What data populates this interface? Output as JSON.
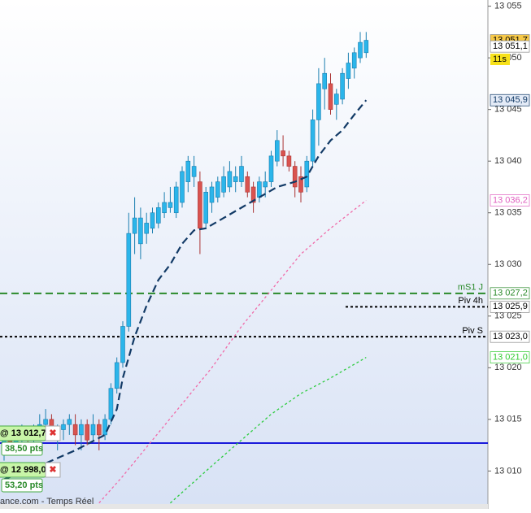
{
  "chart_data": {
    "type": "candlestick",
    "ylim": [
      13006.8,
      13055.6
    ],
    "yticks": [
      {
        "value": 13055,
        "label": "13 055"
      },
      {
        "value": 13050,
        "label": "13 050"
      },
      {
        "value": 13045,
        "label": "13 045"
      },
      {
        "value": 13040,
        "label": "13 040"
      },
      {
        "value": 13035,
        "label": "13 035"
      },
      {
        "value": 13030,
        "label": "13 030"
      },
      {
        "value": 13025,
        "label": "13 025"
      },
      {
        "value": 13020,
        "label": "13 020"
      },
      {
        "value": 13015,
        "label": "13 015"
      },
      {
        "value": 13010,
        "label": "13 010"
      }
    ],
    "up_color": "#2bb5ea",
    "down_color": "#d9534f",
    "open": [
      13012.0,
      13013.0,
      13012.5,
      13013.0,
      13013.5,
      13013.0,
      13014.0,
      13014.5,
      13015.0,
      13013.5,
      13014.0,
      13014.5,
      13014.5,
      13013.5,
      13014.5,
      13013.5,
      13014.5,
      13013.5,
      13015.0,
      13018.0,
      13020.5,
      13024.0,
      13033.0,
      13032.0,
      13033.0,
      13033.5,
      13034.0,
      13035.0,
      13035.5,
      13035.0,
      13036.0,
      13038.0,
      13038.5,
      13038.0,
      13034.0,
      13036.0,
      13036.5,
      13037.0,
      13037.5,
      13038.0,
      13038.0,
      13038.5,
      13037.5,
      13036.5,
      13037.5,
      13038.0,
      13040.0,
      13041.0,
      13040.5,
      13039.5,
      13038.5,
      13037.5,
      13040.0,
      13044.0,
      13047.0,
      13047.5,
      13045.5,
      13046.0,
      13048.0,
      13049.0,
      13050.0,
      13050.5
    ],
    "high": [
      13013.5,
      13014.0,
      13013.5,
      13014.5,
      13014.0,
      13014.5,
      13015.5,
      13016.0,
      13015.5,
      13014.5,
      13015.0,
      13015.5,
      13015.5,
      13015.0,
      13015.0,
      13015.5,
      13015.0,
      13015.5,
      13018.5,
      13021.0,
      13024.5,
      13035.0,
      13036.5,
      13035.5,
      13035.0,
      13035.5,
      13036.0,
      13037.0,
      13037.5,
      13038.0,
      13039.5,
      13040.5,
      13040.5,
      13039.0,
      13037.5,
      13038.0,
      13038.5,
      13039.5,
      13040.0,
      13039.5,
      13040.5,
      13039.0,
      13038.0,
      13038.5,
      13039.0,
      13041.0,
      13043.0,
      13042.5,
      13041.0,
      13040.0,
      13039.5,
      13040.5,
      13045.0,
      13049.0,
      13050.0,
      13048.5,
      13047.0,
      13049.0,
      13050.5,
      13051.0,
      13052.5,
      13052.5
    ],
    "low": [
      13011.0,
      13012.0,
      13011.5,
      13012.0,
      13012.5,
      13012.5,
      13013.0,
      13013.5,
      13013.0,
      13012.0,
      13013.0,
      13013.5,
      13012.5,
      13012.0,
      13012.5,
      13013.0,
      13012.0,
      13013.0,
      13014.5,
      13017.5,
      13020.0,
      13023.5,
      13031.0,
      13030.5,
      13032.0,
      13033.0,
      13033.5,
      13034.5,
      13035.0,
      13034.5,
      13035.5,
      13037.0,
      13037.5,
      13031.0,
      13033.5,
      13035.0,
      13036.0,
      13036.5,
      13037.0,
      13037.0,
      13037.5,
      13036.5,
      13035.0,
      13036.0,
      13036.5,
      13037.5,
      13039.5,
      13039.5,
      13039.0,
      13036.5,
      13036.0,
      13037.0,
      13039.5,
      13041.5,
      13045.0,
      13044.5,
      13044.0,
      13045.5,
      13047.0,
      13048.0,
      13049.5,
      13050.0
    ],
    "close": [
      13013.0,
      13012.5,
      13013.0,
      13013.5,
      13013.0,
      13014.0,
      13014.5,
      13015.0,
      13013.5,
      13014.0,
      13014.5,
      13015.0,
      13013.5,
      13014.5,
      13013.0,
      13014.5,
      13013.5,
      13015.0,
      13018.0,
      13020.5,
      13024.0,
      13033.0,
      13034.5,
      13034.5,
      13034.0,
      13035.0,
      13035.5,
      13036.0,
      13036.0,
      13037.5,
      13039.0,
      13040.0,
      13039.5,
      13033.5,
      13037.0,
      13037.5,
      13038.0,
      13038.5,
      13039.0,
      13038.5,
      13039.5,
      13037.0,
      13036.0,
      13038.0,
      13038.0,
      13040.5,
      13042.0,
      13040.5,
      13039.5,
      13037.5,
      13037.0,
      13040.0,
      13044.0,
      13047.5,
      13048.5,
      13045.0,
      13046.5,
      13048.5,
      13049.5,
      13050.5,
      13051.5,
      13051.7
    ],
    "lines": [
      {
        "color": "#123a66",
        "style": "dashed",
        "x": [
          0,
          6,
          12,
          17,
          19,
          20,
          22,
          24,
          26,
          28,
          30,
          32,
          34,
          37,
          40,
          43,
          46,
          49,
          51,
          53,
          55,
          57,
          59,
          61
        ],
        "values": [
          13009.2,
          13010.5,
          13012.0,
          13013.5,
          13016.0,
          13019.0,
          13023.0,
          13026.0,
          13028.5,
          13030.0,
          13032.0,
          13033.3,
          13033.5,
          13034.5,
          13035.5,
          13036.5,
          13037.5,
          13038.0,
          13038.5,
          13040.5,
          13042.0,
          13043.0,
          13044.5,
          13045.9
        ]
      },
      {
        "color": "#f06aa8",
        "style": "dotted",
        "x": [
          16,
          20,
          25,
          30,
          35,
          40,
          45,
          50,
          55,
          61
        ],
        "values": [
          13006.9,
          13009.5,
          13013.0,
          13016.5,
          13020.0,
          13024.0,
          13027.5,
          13031.0,
          13033.5,
          13036.2
        ]
      },
      {
        "color": "#2ecc40",
        "style": "dotted",
        "x": [
          28,
          35,
          40,
          45,
          50,
          55,
          61
        ],
        "values": [
          13006.9,
          13010.5,
          13013.0,
          13015.5,
          13017.5,
          13019.0,
          13021.0
        ]
      }
    ],
    "levels": [
      {
        "value": 13012.7,
        "color": "#1a1adb",
        "style": "solid"
      },
      {
        "value": 13027.2,
        "color": "#2a8a2a",
        "style": "dashed",
        "label": "mS1 J"
      },
      {
        "value": 13025.9,
        "color": "#000000",
        "style": "dotted",
        "label": "Piv 4h"
      },
      {
        "value": 13023.0,
        "color": "#000000",
        "style": "dotted",
        "label": "Piv S"
      }
    ],
    "price_tags": [
      {
        "value": 13051.7,
        "label": "13 051,7",
        "bg": "#f7c948",
        "fg": "#000000"
      },
      {
        "value": 13051.1,
        "label": "13 051,1",
        "bg": "#ffffff",
        "fg": "#000000"
      },
      {
        "value": 13045.9,
        "label": "13 045,9",
        "bg": "#e4ebf7",
        "fg": "#123a66"
      },
      {
        "value": 13036.2,
        "label": "13 036,2",
        "bg": "#ffffff",
        "fg": "#e060c0"
      },
      {
        "value": 13027.2,
        "label": "13 027,2",
        "bg": "#ffffff",
        "fg": "#2a8a2a"
      },
      {
        "value": 13025.9,
        "label": "13 025,9",
        "bg": "#ffffff",
        "fg": "#000000"
      },
      {
        "value": 13023.0,
        "label": "13 023,0",
        "bg": "#ffffff",
        "fg": "#000000"
      },
      {
        "value": 13021.0,
        "label": "13 021,0",
        "bg": "#ffffff",
        "fg": "#33cc33"
      }
    ],
    "timer": "11s",
    "orders": [
      {
        "price": "@ 13 012,7",
        "points": "38,50 pts"
      },
      {
        "price": "@ 12 998,0",
        "points": "53,20 pts"
      }
    ],
    "footer": "ance.com - Temps Réel"
  }
}
